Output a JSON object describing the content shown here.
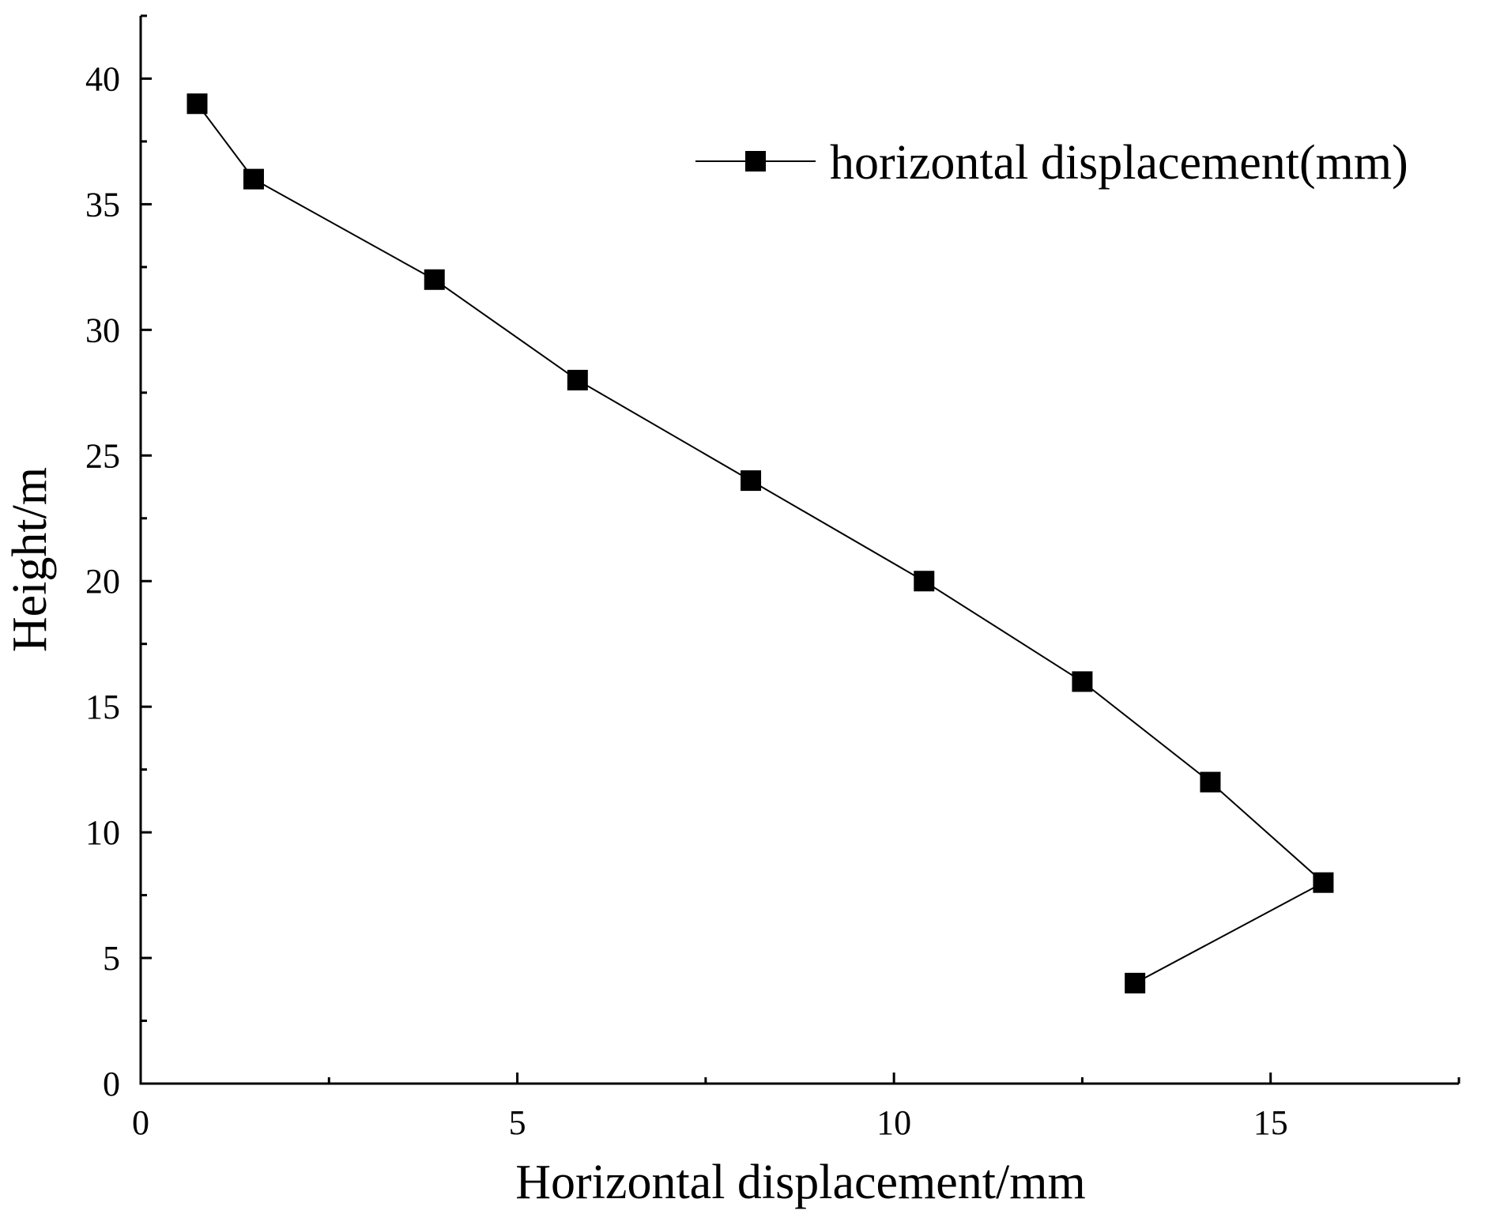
{
  "chart_data": {
    "type": "line",
    "title": "",
    "xlabel": "Horizontal displacement/mm",
    "ylabel": "Height/m",
    "xlim": [
      0,
      17.5
    ],
    "ylim": [
      0,
      42.5
    ],
    "xticks": [
      0,
      5,
      10,
      15
    ],
    "xtick_labels": [
      "0",
      "5",
      "10",
      "15"
    ],
    "yticks": [
      0,
      5,
      10,
      15,
      20,
      25,
      30,
      35,
      40
    ],
    "ytick_labels": [
      "0",
      "5",
      "10",
      "15",
      "20",
      "25",
      "30",
      "35",
      "40"
    ],
    "grid": false,
    "legend_position": "top-right",
    "series": [
      {
        "name": "horizontal displacement(mm)",
        "marker": "square",
        "color": "#000000",
        "points": [
          {
            "x": 0.75,
            "y": 39
          },
          {
            "x": 1.5,
            "y": 36
          },
          {
            "x": 3.9,
            "y": 32
          },
          {
            "x": 5.8,
            "y": 28
          },
          {
            "x": 8.1,
            "y": 24
          },
          {
            "x": 10.4,
            "y": 20
          },
          {
            "x": 12.5,
            "y": 16
          },
          {
            "x": 14.2,
            "y": 12
          },
          {
            "x": 15.7,
            "y": 8
          },
          {
            "x": 13.2,
            "y": 4
          }
        ]
      }
    ]
  }
}
